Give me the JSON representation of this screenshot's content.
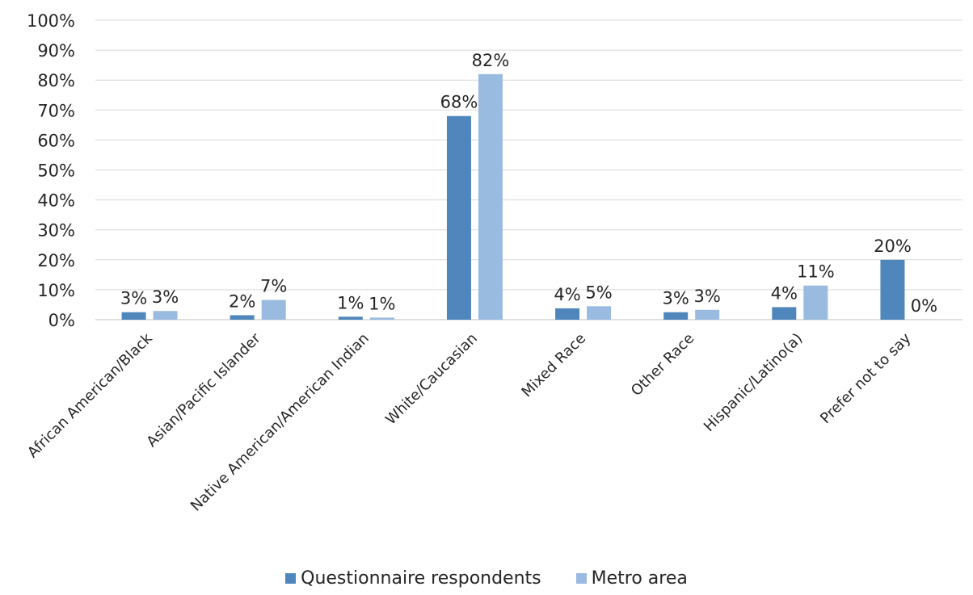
{
  "chart_data": {
    "type": "bar",
    "categories": [
      "African American/Black",
      "Asian/Pacific Islander",
      "Native American/American Indian",
      "White/Caucasian",
      "Mixed Race",
      "Other  Race",
      "Hispanic/Latino(a)",
      "Prefer not to say"
    ],
    "series": [
      {
        "name": "Questionnaire respondents",
        "values": [
          2.5,
          1.5,
          1.0,
          68,
          3.8,
          2.5,
          4.2,
          20
        ],
        "labels": [
          "3%",
          "2%",
          "1%",
          "68%",
          "4%",
          "3%",
          "4%",
          "20%"
        ],
        "color": "#4f87bd"
      },
      {
        "name": "Metro area",
        "values": [
          2.9,
          6.6,
          0.7,
          82,
          4.5,
          3.3,
          11.4,
          0
        ],
        "labels": [
          "3%",
          "7%",
          "1%",
          "82%",
          "5%",
          "3%",
          "11%",
          "0%"
        ],
        "color": "#9abbe0"
      }
    ],
    "ylim": [
      0,
      100
    ],
    "yticks": [
      "0%",
      "10%",
      "20%",
      "30%",
      "40%",
      "50%",
      "60%",
      "70%",
      "80%",
      "90%",
      "100%"
    ],
    "grid": true,
    "legend_position": "bottom"
  }
}
